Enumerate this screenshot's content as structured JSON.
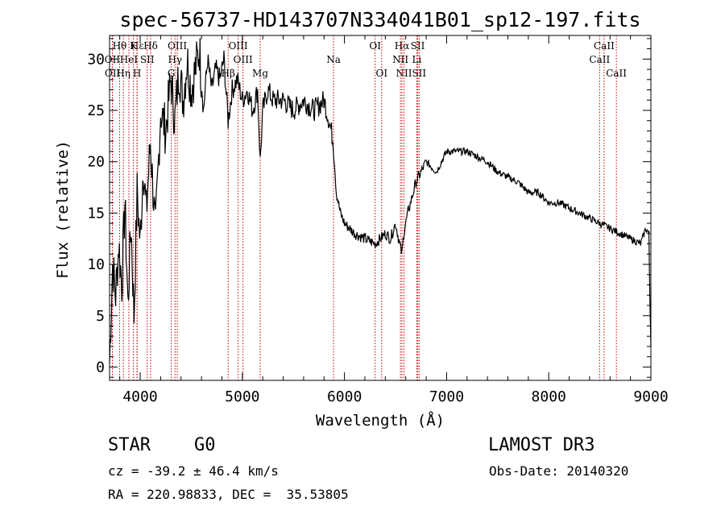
{
  "chart_data": {
    "type": "line",
    "title": "spec-56737-HD143707N334041B01_sp12-197.fits",
    "xlabel": "Wavelength (Å)",
    "ylabel": "Flux (relative)",
    "xlim": [
      3700,
      9000
    ],
    "ylim": [
      -1.3,
      32.3
    ],
    "xticks": [
      4000,
      5000,
      6000,
      7000,
      8000,
      9000
    ],
    "yticks": [
      0,
      5,
      10,
      15,
      20,
      25,
      30
    ],
    "grid": false,
    "series": [
      {
        "name": "flux",
        "x": [
          3700,
          3730,
          3760,
          3790,
          3820,
          3850,
          3880,
          3910,
          3940,
          3970,
          4000,
          4030,
          4060,
          4100,
          4150,
          4200,
          4250,
          4300,
          4340,
          4380,
          4420,
          4460,
          4500,
          4540,
          4580,
          4620,
          4660,
          4700,
          4740,
          4780,
          4820,
          4861,
          4900,
          4950,
          5000,
          5050,
          5100,
          5150,
          5175,
          5200,
          5250,
          5300,
          5400,
          5500,
          5600,
          5700,
          5800,
          5850,
          5890,
          5920,
          5960,
          6000,
          6100,
          6200,
          6300,
          6400,
          6450,
          6500,
          6540,
          6563,
          6580,
          6620,
          6700,
          6800,
          6900,
          7000,
          7100,
          7200,
          7300,
          7400,
          7500,
          7600,
          7700,
          7800,
          7900,
          8000,
          8100,
          8200,
          8300,
          8400,
          8500,
          8600,
          8700,
          8800,
          8900,
          8950,
          8980,
          8990,
          9000
        ],
        "y": [
          0.5,
          10,
          7,
          12,
          8,
          16,
          6,
          14,
          5,
          17,
          12,
          20,
          15,
          22,
          13,
          25,
          23,
          28,
          24,
          29,
          26,
          30,
          27,
          29,
          31,
          25,
          30,
          27,
          29,
          28,
          30,
          24,
          27,
          28,
          26,
          27,
          25,
          27,
          20,
          25,
          27,
          26,
          26,
          25,
          26,
          25,
          26,
          24,
          22,
          17,
          15,
          14,
          13,
          12.5,
          12,
          13,
          12.5,
          14,
          12,
          11,
          13,
          15,
          18,
          20,
          19,
          21,
          21,
          21,
          20.5,
          20,
          19,
          18.5,
          18,
          17,
          17,
          16,
          16,
          15.5,
          15,
          14.5,
          14,
          13.5,
          13,
          12.5,
          12,
          13.5,
          13,
          7,
          2
        ]
      }
    ],
    "lines": [
      {
        "label": "Hε",
        "wl": 3970,
        "tier": 0
      },
      {
        "label": "OII",
        "wl": 3727,
        "tier": 1
      },
      {
        "label": "OII",
        "wl": 3729,
        "tier": 2
      },
      {
        "label": "Hθ",
        "wl": 3798,
        "tier": 0
      },
      {
        "label": "HeI",
        "wl": 3889,
        "tier": 1
      },
      {
        "label": "Hη",
        "wl": 3835,
        "tier": 2
      },
      {
        "label": "K",
        "wl": 3934,
        "tier": 0
      },
      {
        "label": "SII",
        "wl": 4069,
        "tier": 1
      },
      {
        "label": "H",
        "wl": 3969,
        "tier": 2
      },
      {
        "label": "Hδ",
        "wl": 4102,
        "tier": 0
      },
      {
        "label": "OIII",
        "wl": 4363,
        "tier": 0
      },
      {
        "label": "Hγ",
        "wl": 4341,
        "tier": 1
      },
      {
        "label": "G",
        "wl": 4305,
        "tier": 2
      },
      {
        "label": "Hβ",
        "wl": 4861,
        "tier": 2
      },
      {
        "label": "OIII",
        "wl": 4959,
        "tier": 0
      },
      {
        "label": "OIII",
        "wl": 5007,
        "tier": 1
      },
      {
        "label": "Mg",
        "wl": 5175,
        "tier": 2
      },
      {
        "label": "Na",
        "wl": 5893,
        "tier": 1
      },
      {
        "label": "OI",
        "wl": 6300,
        "tier": 0
      },
      {
        "label": "OI",
        "wl": 6364,
        "tier": 2
      },
      {
        "label": "Hα",
        "wl": 6563,
        "tier": 0
      },
      {
        "label": "NII",
        "wl": 6548,
        "tier": 1
      },
      {
        "label": "NII",
        "wl": 6583,
        "tier": 2
      },
      {
        "label": "SII",
        "wl": 6717,
        "tier": 0
      },
      {
        "label": "Li",
        "wl": 6708,
        "tier": 1
      },
      {
        "label": "SII",
        "wl": 6731,
        "tier": 2
      },
      {
        "label": "CaII",
        "wl": 8542,
        "tier": 0
      },
      {
        "label": "CaII",
        "wl": 8498,
        "tier": 1
      },
      {
        "label": "CaII",
        "wl": 8662,
        "tier": 2
      }
    ],
    "line_color": "#c00000"
  },
  "info": {
    "class": "STAR",
    "subclass": "G0",
    "survey": "LAMOST DR3",
    "cz": "cz = -39.2 ± 46.4 km/s",
    "obs_date": "Obs-Date: 20140320",
    "coords": "RA = 220.98833, DEC =  35.53805"
  }
}
